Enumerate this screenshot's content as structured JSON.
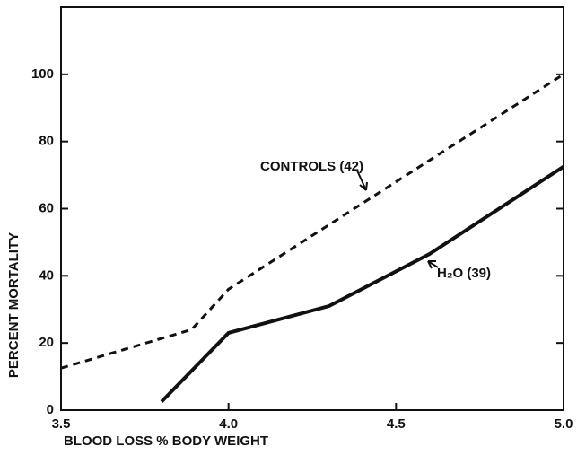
{
  "chart_data": {
    "type": "line",
    "x_label": "BLOOD LOSS % BODY WEIGHT",
    "y_label": "PERCENT MORTALITY",
    "annotations": [
      "CONTROLS (42)",
      "H₂O (39)"
    ],
    "series": [
      {
        "name": "CONTROLS (42)",
        "color": "#111111",
        "linestyle": "dashed",
        "x": [
          3.5,
          3.89,
          4.0,
          5.0
        ],
        "values": [
          12.5,
          24,
          36,
          100
        ]
      },
      {
        "name": "H₂O (39)",
        "color": "#111111",
        "linestyle": "solid",
        "x": [
          3.8,
          4.0,
          4.3,
          4.6,
          5.0
        ],
        "values": [
          2.5,
          23,
          31,
          46.5,
          72.5
        ]
      }
    ],
    "xlim": [
      3.5,
      5.0
    ],
    "xticks": [
      3.5,
      {
        "value": 4,
        "label": "4.0"
      },
      4.5,
      {
        "value": 5,
        "label": "5.0"
      }
    ],
    "ylim": [
      0,
      120
    ],
    "yticks": [
      0,
      20,
      40,
      60,
      80,
      100
    ],
    "grid": false
  }
}
